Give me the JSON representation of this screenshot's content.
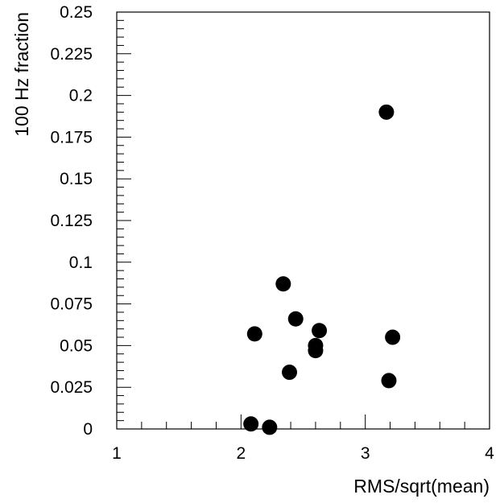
{
  "chart_data": {
    "type": "scatter",
    "title": "",
    "xlabel": "RMS/sqrt(mean)",
    "ylabel": "100 Hz fraction",
    "xlim": [
      1,
      4
    ],
    "ylim": [
      0,
      0.25
    ],
    "xticks": [
      1,
      2,
      3,
      4
    ],
    "xtick_labels": [
      "1",
      "2",
      "3",
      "4"
    ],
    "yticks": [
      0,
      0.025,
      0.05,
      0.075,
      0.1,
      0.125,
      0.15,
      0.175,
      0.2,
      0.225,
      0.25
    ],
    "ytick_labels": [
      "0",
      "0.025",
      "0.05",
      "0.075",
      "0.1",
      "0.125",
      "0.15",
      "0.175",
      "0.2",
      "0.225",
      "0.25"
    ],
    "grid": false,
    "marker_color": "#000000",
    "points": [
      {
        "x": 3.17,
        "y": 0.19
      },
      {
        "x": 2.34,
        "y": 0.087
      },
      {
        "x": 2.44,
        "y": 0.066
      },
      {
        "x": 2.63,
        "y": 0.059
      },
      {
        "x": 2.11,
        "y": 0.057
      },
      {
        "x": 3.22,
        "y": 0.055
      },
      {
        "x": 2.6,
        "y": 0.05
      },
      {
        "x": 2.6,
        "y": 0.047
      },
      {
        "x": 2.39,
        "y": 0.034
      },
      {
        "x": 3.19,
        "y": 0.029
      },
      {
        "x": 2.08,
        "y": 0.003
      },
      {
        "x": 2.23,
        "y": 0.001
      }
    ]
  }
}
